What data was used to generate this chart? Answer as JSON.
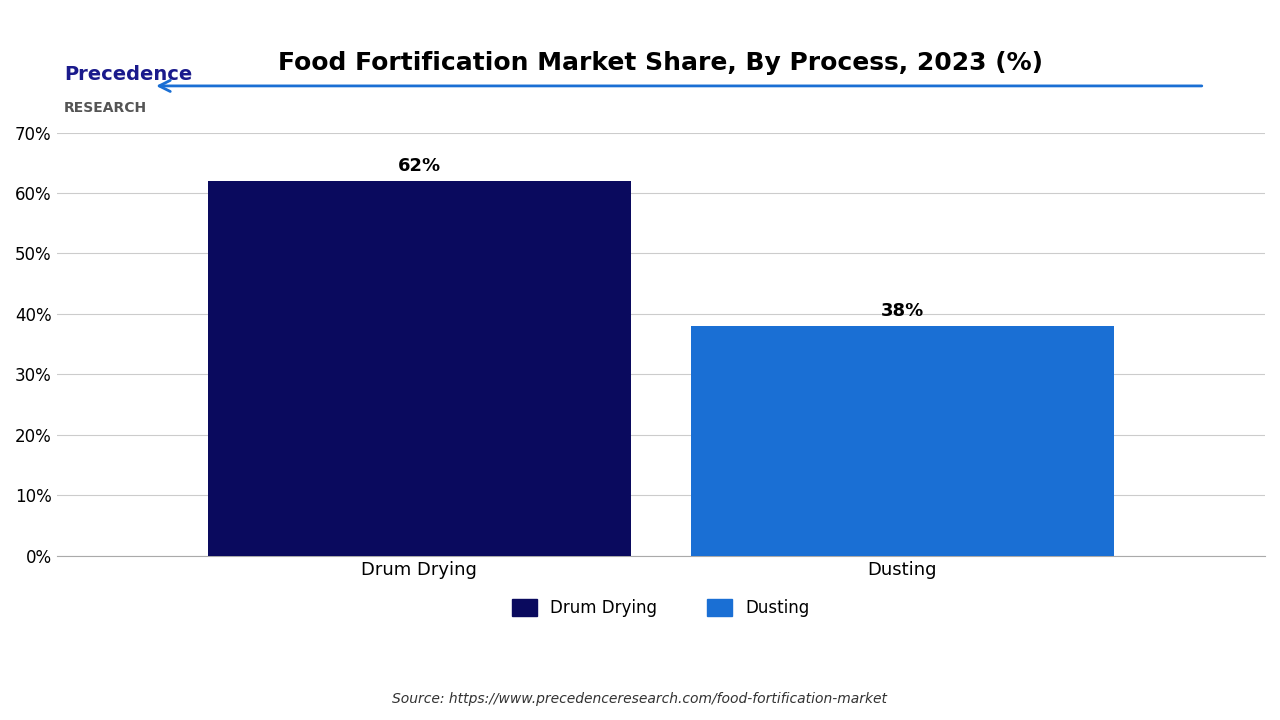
{
  "title": "Food Fortification Market Share, By Process, 2023 (%)",
  "categories": [
    "Drum Drying",
    "Dusting"
  ],
  "values": [
    62,
    38
  ],
  "bar_colors": [
    "#0a0a5e",
    "#1a6fd4"
  ],
  "bar_labels": [
    "62%",
    "38%"
  ],
  "ylim": [
    0,
    70
  ],
  "yticks": [
    0,
    10,
    20,
    30,
    40,
    50,
    60,
    70
  ],
  "ytick_labels": [
    "0%",
    "10%",
    "20%",
    "30%",
    "40%",
    "50%",
    "60%",
    "70%"
  ],
  "legend_labels": [
    "Drum Drying",
    "Dusting"
  ],
  "legend_colors": [
    "#0a0a5e",
    "#1a6fd4"
  ],
  "source_text": "Source: https://www.precedenceresearch.com/food-fortification-market",
  "logo_text_line1": "Precedence",
  "logo_text_line2": "RESEARCH",
  "arrow_color": "#1a6fd4",
  "background_color": "#ffffff",
  "title_fontsize": 18,
  "label_fontsize": 13,
  "tick_fontsize": 12,
  "legend_fontsize": 12,
  "source_fontsize": 10,
  "bar_width": 0.35
}
